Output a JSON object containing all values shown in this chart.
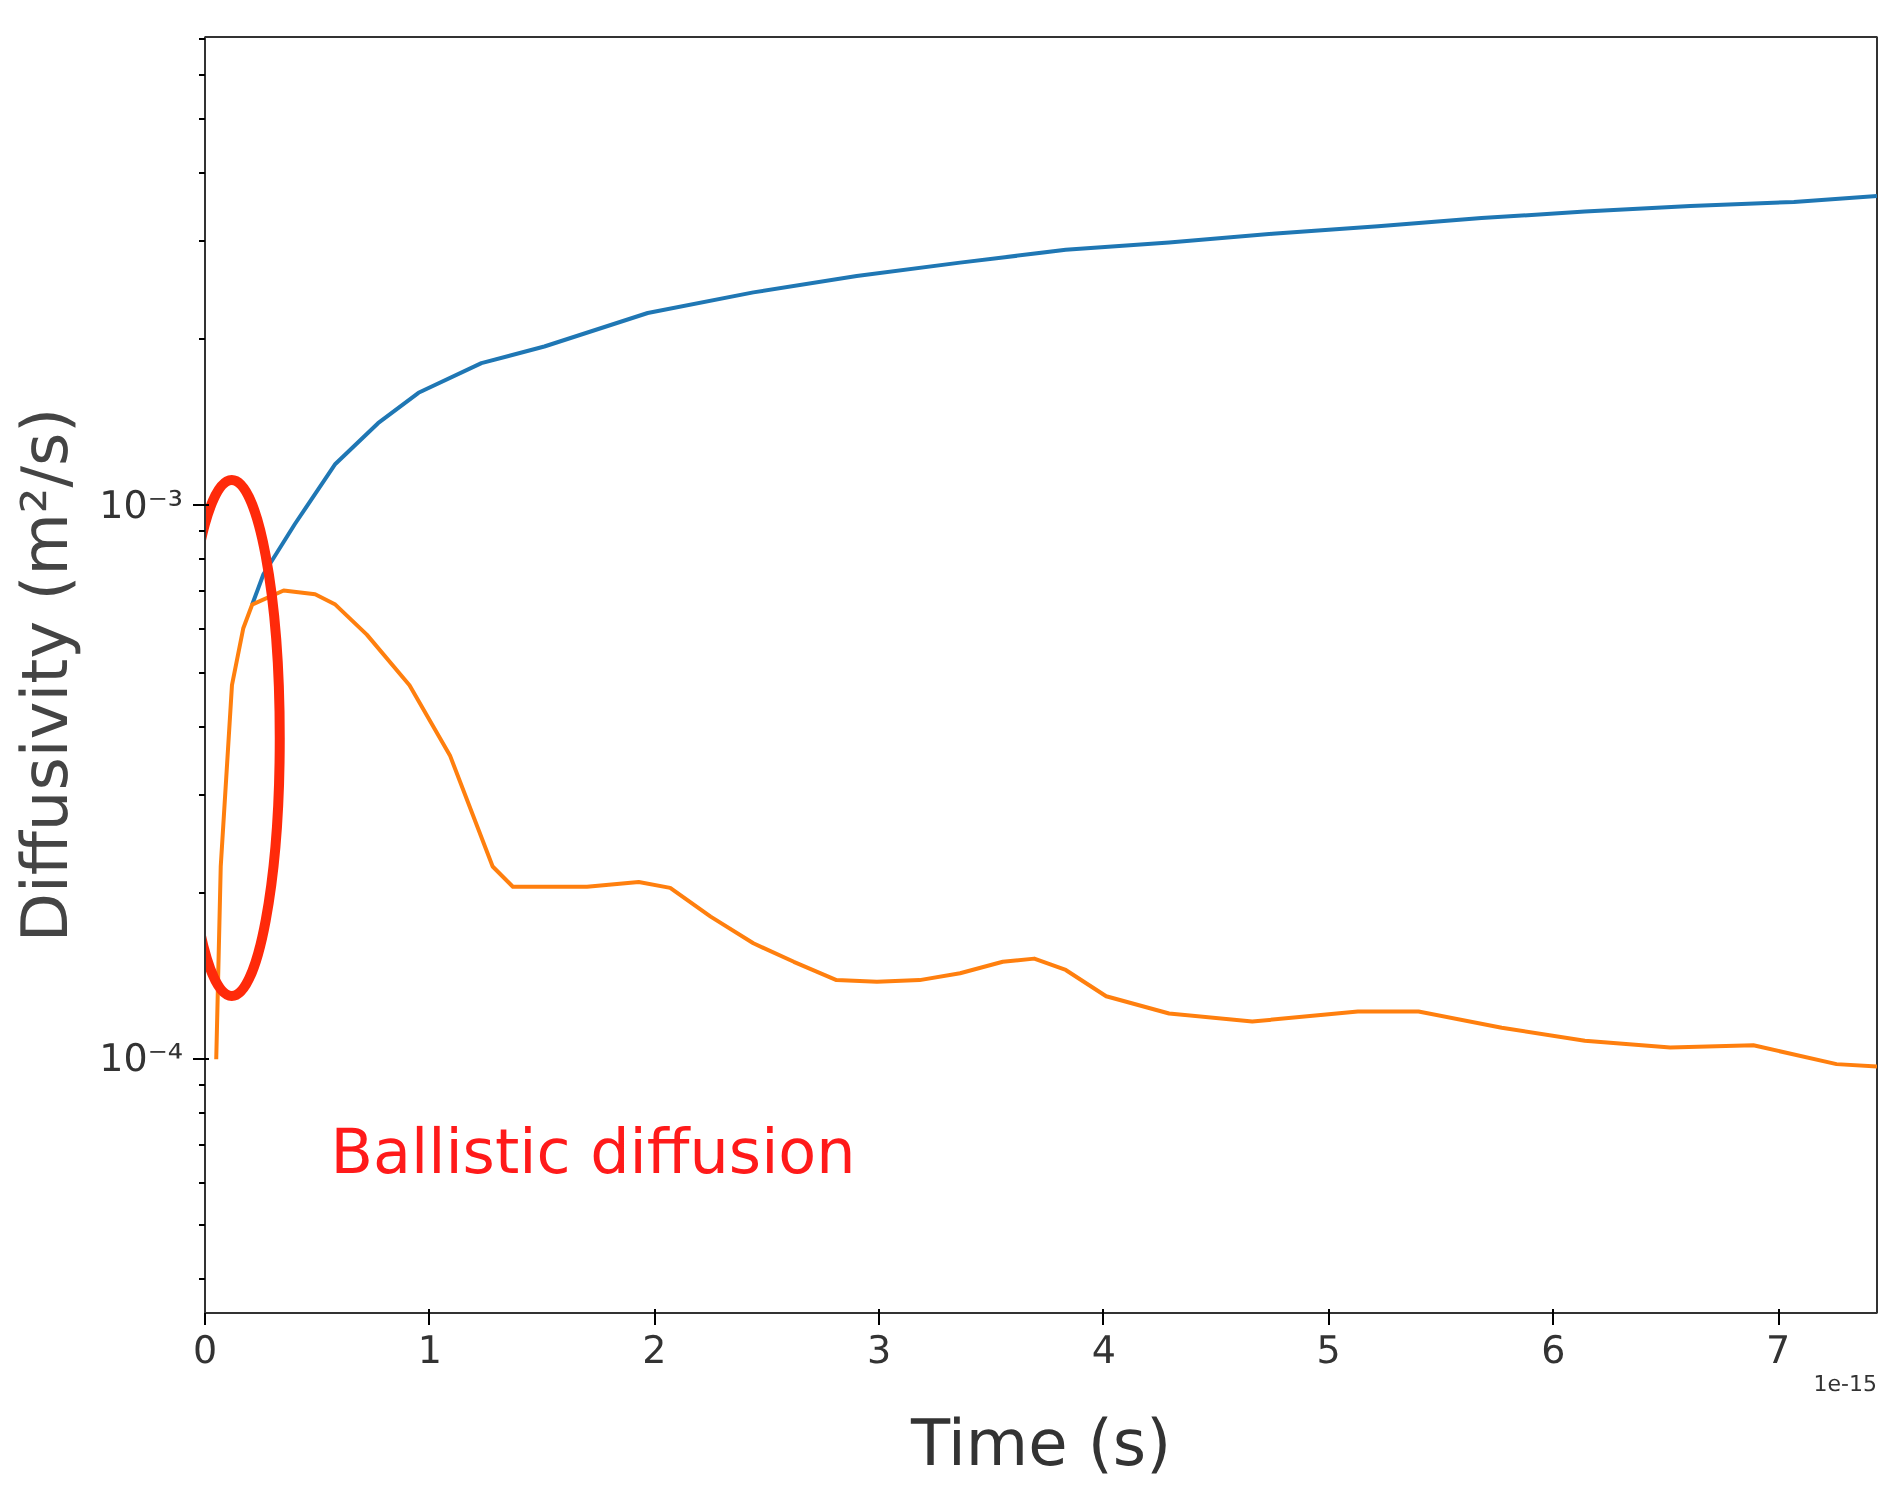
{
  "chart_data": {
    "type": "line",
    "xlabel": "Time (s)",
    "ylabel": "Diffusivity (m²/s)",
    "log": "y",
    "grid": false,
    "marker": "none",
    "line_style": "solid",
    "xlim": [
      0,
      7.44
    ],
    "ylim": [
      3.48e-05,
      0.00703
    ],
    "xticks": [
      0,
      1,
      2,
      3,
      4,
      5,
      6,
      7
    ],
    "yticks": [
      {
        "value": 0.0001,
        "label": "10⁻⁴"
      },
      {
        "value": 0.001,
        "label": "10⁻³"
      }
    ],
    "series": [
      {
        "color": "#1f77b4",
        "x": [
          0.21,
          0.26,
          0.4,
          0.58,
          0.77,
          0.95,
          1.23,
          1.51,
          1.97,
          2.44,
          2.9,
          3.36,
          3.83,
          4.29,
          4.75,
          5.22,
          5.68,
          6.14,
          6.61,
          7.07,
          7.44
        ],
        "values": [
          0.000663,
          0.000752,
          0.000927,
          0.00119,
          0.00141,
          0.0016,
          0.00181,
          0.00194,
          0.00223,
          0.00243,
          0.0026,
          0.00275,
          0.0029,
          0.00299,
          0.0031,
          0.0032,
          0.00331,
          0.0034,
          0.00348,
          0.00354,
          0.00363
        ]
      },
      {
        "color": "#ff7f0e",
        "x": [
          0.05,
          0.07,
          0.12,
          0.17,
          0.21,
          0.35,
          0.49,
          0.58,
          0.72,
          0.91,
          1.09,
          1.28,
          1.37,
          1.51,
          1.7,
          1.93,
          2.07,
          2.25,
          2.44,
          2.62,
          2.81,
          2.99,
          3.18,
          3.36,
          3.55,
          3.69,
          3.83,
          4.01,
          4.29,
          4.66,
          5.13,
          5.4,
          5.77,
          6.14,
          6.52,
          6.89,
          7.26,
          7.44
        ],
        "values": [
          0.0001,
          0.000223,
          0.000474,
          0.0006,
          0.000663,
          0.000703,
          0.000692,
          0.000663,
          0.000585,
          0.000474,
          0.000354,
          0.000223,
          0.000205,
          0.000205,
          0.000205,
          0.000209,
          0.000204,
          0.000181,
          0.000162,
          0.00015,
          0.000139,
          0.000138,
          0.000139,
          0.000143,
          0.00015,
          0.000152,
          0.000145,
          0.00013,
          0.000121,
          0.000117,
          0.000122,
          0.000122,
          0.000114,
          0.000108,
          0.000105,
          0.000106,
          9.8e-05,
          9.7e-05
        ]
      }
    ],
    "annotations": [
      "Ballistic diffusion",
      "1e-15"
    ]
  }
}
